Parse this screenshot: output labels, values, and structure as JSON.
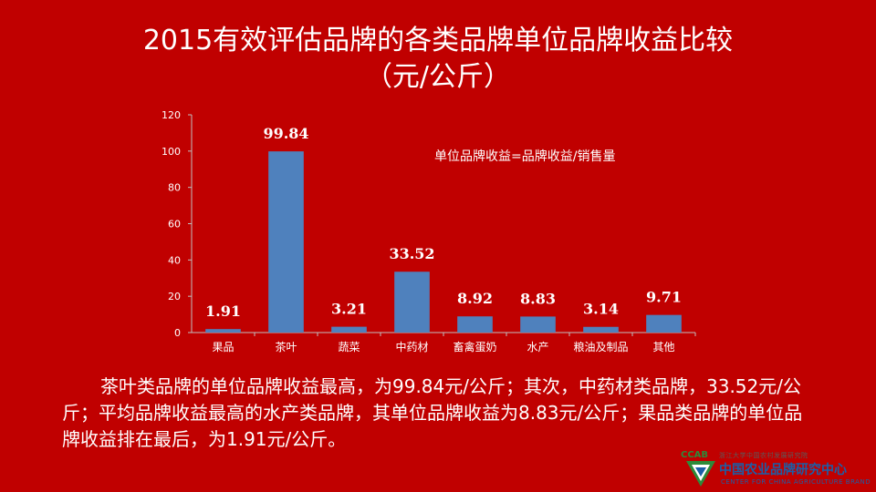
{
  "chart_data": {
    "type": "bar",
    "title": "2015有效评估品牌的各类品牌单位品牌收益比较",
    "subtitle": "（元/公斤）",
    "categories": [
      "果品",
      "茶叶",
      "蔬菜",
      "中药材",
      "畜禽蛋奶",
      "水产",
      "粮油及制品",
      "其他"
    ],
    "values": [
      1.91,
      99.84,
      3.21,
      33.52,
      8.92,
      8.83,
      3.14,
      9.71
    ],
    "value_labels": [
      "1.91",
      "99.84",
      "3.21",
      "33.52",
      "8.92",
      "8.83",
      "3.14",
      "9.71"
    ],
    "ylim": [
      0,
      120
    ],
    "yticks": [
      "0",
      "20",
      "40",
      "60",
      "80",
      "100",
      "120"
    ],
    "yticks_values": [
      0,
      20,
      40,
      60,
      80,
      100,
      120
    ],
    "annotation": "单位品牌收益=品牌收益/销售量",
    "grid": false,
    "bar_color": "#4f81bd",
    "axis_color": "#bfbfbf"
  },
  "description": "茶叶类品牌的单位品牌收益最高，为99.84元/公斤；其次，中药材类品牌，33.52元/公斤；平均品牌收益最高的水产类品牌，其单位品牌收益为8.83元/公斤；果品类品牌的单位品牌收益排在最后，为1.91元/公斤。",
  "logo": {
    "abbr": "CCAB",
    "top_text": "浙江大学中国农村发展研究院",
    "name_cn": "中国农业品牌研究中心",
    "name_en": "CENTER FOR CHINA AGRICULTURE BRAND",
    "green": "#2d8a3a",
    "blue": "#1a5fa8"
  },
  "colors": {
    "background": "#c00000",
    "text": "#ffffff"
  }
}
